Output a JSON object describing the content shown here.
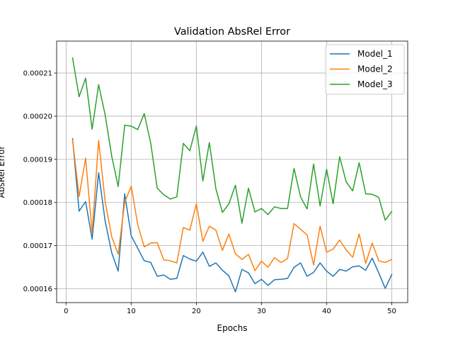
{
  "chart_data": {
    "type": "line",
    "title": "Validation AbsRel Error",
    "xlabel": "Epochs",
    "ylabel": "AbsRel Error",
    "xlim": [
      -1.45,
      52.45
    ],
    "ylim": [
      0.0001568,
      0.0002174
    ],
    "x_ticks": [
      0,
      10,
      20,
      30,
      40,
      50
    ],
    "x_tick_labels": [
      "0",
      "10",
      "20",
      "30",
      "40",
      "50"
    ],
    "y_ticks": [
      0.00016,
      0.00017,
      0.00018,
      0.00019,
      0.0002,
      0.00021
    ],
    "y_tick_labels": [
      "0.00016",
      "0.00017",
      "0.00018",
      "0.00019",
      "0.00020",
      "0.00021"
    ],
    "grid": true,
    "legend_position": "top-right",
    "x": [
      1,
      2,
      3,
      4,
      5,
      6,
      7,
      8,
      9,
      10,
      11,
      12,
      13,
      14,
      15,
      16,
      17,
      18,
      19,
      20,
      21,
      22,
      23,
      24,
      25,
      26,
      27,
      28,
      29,
      30,
      31,
      32,
      33,
      34,
      35,
      36,
      37,
      38,
      39,
      40,
      41,
      42,
      43,
      44,
      45,
      46,
      47,
      48,
      49,
      50
    ],
    "series": [
      {
        "name": "Model_1",
        "color": "#1f77b4",
        "values": [
          0.0001948,
          0.000178,
          0.0001802,
          0.0001715,
          0.0001869,
          0.0001757,
          0.0001684,
          0.0001641,
          0.000182,
          0.0001723,
          0.0001694,
          0.0001665,
          0.0001661,
          0.0001629,
          0.0001632,
          0.0001622,
          0.0001624,
          0.0001677,
          0.0001669,
          0.0001664,
          0.0001685,
          0.0001652,
          0.000166,
          0.0001643,
          0.000163,
          0.0001593,
          0.0001645,
          0.0001637,
          0.0001612,
          0.0001622,
          0.0001608,
          0.0001621,
          0.0001622,
          0.0001624,
          0.000165,
          0.000166,
          0.0001629,
          0.0001638,
          0.000166,
          0.0001641,
          0.0001629,
          0.0001645,
          0.0001641,
          0.0001651,
          0.0001653,
          0.0001643,
          0.0001671,
          0.0001637,
          0.0001601,
          0.0001633
        ]
      },
      {
        "name": "Model_2",
        "color": "#ff7f0e",
        "values": [
          0.0001945,
          0.0001814,
          0.0001903,
          0.000173,
          0.0001944,
          0.0001802,
          0.0001721,
          0.000168,
          0.00018,
          0.0001838,
          0.0001749,
          0.0001697,
          0.0001706,
          0.0001707,
          0.0001667,
          0.0001665,
          0.000166,
          0.0001742,
          0.0001736,
          0.0001797,
          0.000171,
          0.0001745,
          0.0001736,
          0.0001689,
          0.0001727,
          0.0001681,
          0.0001668,
          0.000168,
          0.0001642,
          0.0001664,
          0.000165,
          0.0001672,
          0.0001661,
          0.000167,
          0.0001751,
          0.0001738,
          0.0001725,
          0.0001655,
          0.0001745,
          0.0001685,
          0.0001692,
          0.0001713,
          0.000169,
          0.0001673,
          0.0001727,
          0.0001659,
          0.0001706,
          0.0001665,
          0.0001661,
          0.0001668
        ]
      },
      {
        "name": "Model_3",
        "color": "#2ca02c",
        "values": [
          0.0002135,
          0.0002045,
          0.0002088,
          0.000197,
          0.0002073,
          0.0002003,
          0.0001908,
          0.0001837,
          0.0001979,
          0.0001977,
          0.0001969,
          0.0002006,
          0.0001937,
          0.0001833,
          0.0001818,
          0.0001808,
          0.0001813,
          0.0001937,
          0.000192,
          0.0001977,
          0.000185,
          0.0001939,
          0.0001832,
          0.0001777,
          0.0001797,
          0.000184,
          0.0001752,
          0.0001833,
          0.0001778,
          0.0001786,
          0.0001772,
          0.000179,
          0.0001786,
          0.0001786,
          0.0001879,
          0.0001813,
          0.0001785,
          0.0001889,
          0.0001792,
          0.0001877,
          0.0001797,
          0.0001906,
          0.0001848,
          0.0001827,
          0.0001892,
          0.000182,
          0.0001819,
          0.0001812,
          0.0001759,
          0.0001779
        ]
      }
    ]
  }
}
